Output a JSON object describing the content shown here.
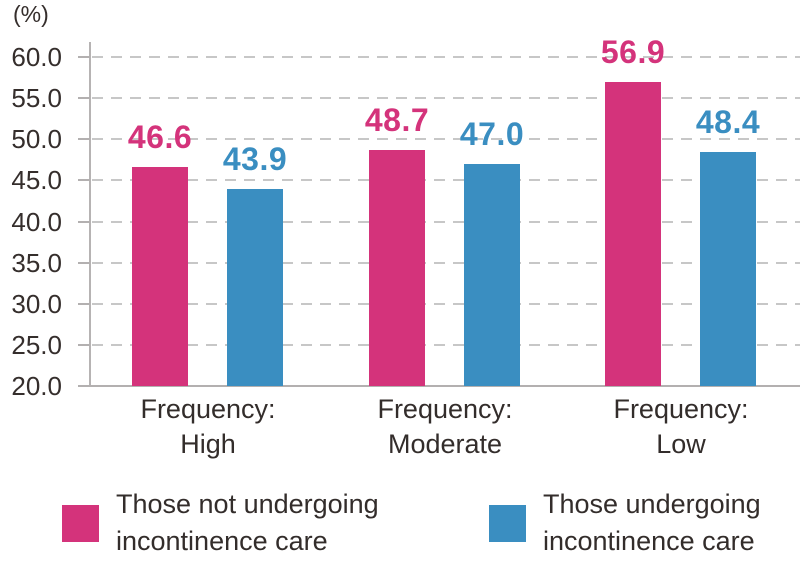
{
  "chart_data": {
    "type": "bar",
    "title": "",
    "unit_label": "(%)",
    "xlabel": "",
    "ylabel": "(%)",
    "ylim": [
      20,
      60
    ],
    "ytick_step": 5,
    "ytick_labels": [
      "60.0",
      "55.0",
      "50.0",
      "45.0",
      "40.0",
      "35.0",
      "30.0",
      "25.0",
      "20.0"
    ],
    "grid": "horizontal-dashed",
    "legend_position": "bottom",
    "categories": [
      "Frequency: High",
      "Frequency: Moderate",
      "Frequency: Low"
    ],
    "category_label_lines": [
      [
        "Frequency:",
        "High"
      ],
      [
        "Frequency:",
        "Moderate"
      ],
      [
        "Frequency:",
        "Low"
      ]
    ],
    "series": [
      {
        "name": "Those not undergoing incontinence care",
        "legend_lines": [
          "Those not undergoing",
          "incontinence care"
        ],
        "color": "#d4337b",
        "values": [
          46.6,
          48.7,
          56.9
        ],
        "value_labels": [
          "46.6",
          "48.7",
          "56.9"
        ]
      },
      {
        "name": "Those undergoing incontinence care",
        "legend_lines": [
          "Those undergoing",
          "incontinence care"
        ],
        "color": "#3a8ec1",
        "values": [
          43.9,
          47.0,
          48.4
        ],
        "value_labels": [
          "43.9",
          "47.0",
          "48.4"
        ]
      }
    ]
  },
  "colors": {
    "series_not_undergoing": "#d4337b",
    "series_undergoing": "#3a8ec1",
    "gridline": "#c7c7c7",
    "axis_line": "#b3b0b0",
    "text": "#352e2c",
    "background": "#ffffff"
  }
}
